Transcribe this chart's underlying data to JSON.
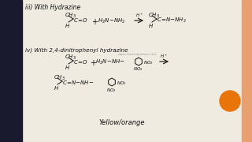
{
  "bg_color": "#f0ebe0",
  "left_panel_color": "#1a1a2e",
  "right_panel_color": "#e8a070",
  "orange_circle_color": "#e8740a",
  "title1": "iii) With Hydrazine",
  "title2": "iv) With 2,4-dinitrophenyl hydrazine",
  "watermark": "www.freeedushare.net",
  "bottom_label": "Yellow/orange",
  "text_color": "#111111",
  "watermark_color": "#999999"
}
